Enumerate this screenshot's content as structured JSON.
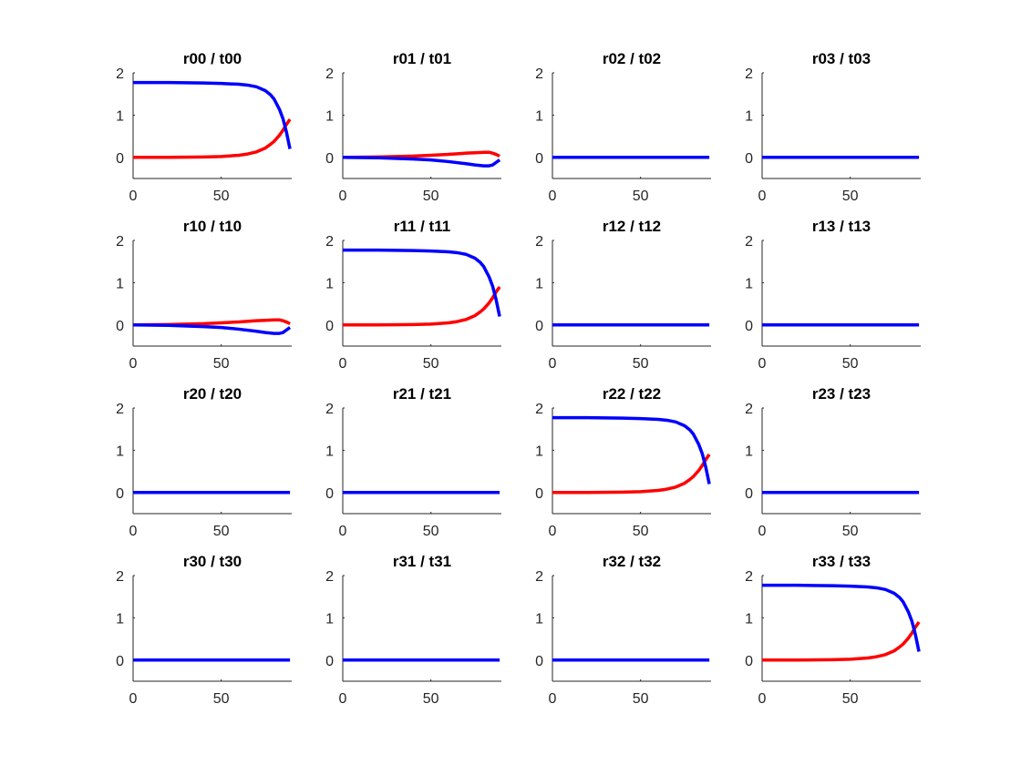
{
  "colors": {
    "red_series": "#ff0000",
    "blue_series": "#0000ff",
    "axis": "#262626"
  },
  "chart_data": [
    {
      "type": "line",
      "title": "r00 / t00",
      "xlim": [
        0,
        90
      ],
      "ylim": [
        -0.5,
        2
      ],
      "xticks": [
        "0",
        "50"
      ],
      "yticks": [
        "0",
        "1",
        "2"
      ],
      "series": [
        {
          "color": "red",
          "x": [
            0,
            20,
            40,
            50,
            60,
            65,
            70,
            75,
            78,
            80,
            83,
            85,
            87,
            89
          ],
          "values": [
            0,
            0.0,
            0.01,
            0.02,
            0.05,
            0.08,
            0.13,
            0.22,
            0.31,
            0.38,
            0.52,
            0.64,
            0.78,
            0.9
          ]
        },
        {
          "color": "blue",
          "x": [
            0,
            20,
            40,
            50,
            60,
            65,
            70,
            75,
            78,
            80,
            83,
            85,
            87,
            89
          ],
          "values": [
            1.77,
            1.77,
            1.76,
            1.75,
            1.73,
            1.71,
            1.67,
            1.58,
            1.48,
            1.38,
            1.14,
            0.92,
            0.6,
            0.2
          ]
        }
      ]
    },
    {
      "type": "line",
      "title": "r01 / t01",
      "xlim": [
        0,
        90
      ],
      "ylim": [
        -0.5,
        2
      ],
      "xticks": [
        "0",
        "50"
      ],
      "yticks": [
        "0",
        "1",
        "2"
      ],
      "series": [
        {
          "color": "red",
          "x": [
            0,
            20,
            40,
            50,
            60,
            70,
            75,
            80,
            83,
            85,
            87,
            89
          ],
          "values": [
            0,
            0.01,
            0.03,
            0.05,
            0.07,
            0.1,
            0.11,
            0.12,
            0.12,
            0.1,
            0.07,
            0.03
          ]
        },
        {
          "color": "blue",
          "x": [
            0,
            20,
            40,
            50,
            60,
            70,
            75,
            80,
            83,
            85,
            87,
            89
          ],
          "values": [
            0,
            -0.01,
            -0.04,
            -0.06,
            -0.1,
            -0.15,
            -0.18,
            -0.2,
            -0.2,
            -0.18,
            -0.12,
            -0.06
          ]
        }
      ]
    },
    {
      "type": "line",
      "title": "r02 / t02",
      "xlim": [
        0,
        90
      ],
      "ylim": [
        -0.5,
        2
      ],
      "xticks": [
        "0",
        "50"
      ],
      "yticks": [
        "0",
        "1",
        "2"
      ],
      "series": [
        {
          "color": "red",
          "x": [
            0,
            89
          ],
          "values": [
            0,
            0
          ]
        },
        {
          "color": "blue",
          "x": [
            0,
            89
          ],
          "values": [
            0,
            0
          ]
        }
      ]
    },
    {
      "type": "line",
      "title": "r03 / t03",
      "xlim": [
        0,
        90
      ],
      "ylim": [
        -0.5,
        2
      ],
      "xticks": [
        "0",
        "50"
      ],
      "yticks": [
        "0",
        "1",
        "2"
      ],
      "series": [
        {
          "color": "red",
          "x": [
            0,
            89
          ],
          "values": [
            0,
            0
          ]
        },
        {
          "color": "blue",
          "x": [
            0,
            89
          ],
          "values": [
            0,
            0
          ]
        }
      ]
    },
    {
      "type": "line",
      "title": "r10 / t10",
      "xlim": [
        0,
        90
      ],
      "ylim": [
        -0.5,
        2
      ],
      "xticks": [
        "0",
        "50"
      ],
      "yticks": [
        "0",
        "1",
        "2"
      ],
      "series": [
        {
          "color": "red",
          "x": [
            0,
            20,
            40,
            50,
            60,
            70,
            75,
            80,
            83,
            85,
            87,
            89
          ],
          "values": [
            0,
            0.01,
            0.03,
            0.05,
            0.07,
            0.1,
            0.11,
            0.12,
            0.12,
            0.1,
            0.07,
            0.03
          ]
        },
        {
          "color": "blue",
          "x": [
            0,
            20,
            40,
            50,
            60,
            70,
            75,
            80,
            83,
            85,
            87,
            89
          ],
          "values": [
            0,
            -0.01,
            -0.04,
            -0.06,
            -0.1,
            -0.15,
            -0.18,
            -0.2,
            -0.2,
            -0.18,
            -0.12,
            -0.06
          ]
        }
      ]
    },
    {
      "type": "line",
      "title": "r11 / t11",
      "xlim": [
        0,
        90
      ],
      "ylim": [
        -0.5,
        2
      ],
      "xticks": [
        "0",
        "50"
      ],
      "yticks": [
        "0",
        "1",
        "2"
      ],
      "series": [
        {
          "color": "red",
          "x": [
            0,
            20,
            40,
            50,
            60,
            65,
            70,
            75,
            78,
            80,
            83,
            85,
            87,
            89
          ],
          "values": [
            0,
            0.0,
            0.01,
            0.02,
            0.05,
            0.08,
            0.13,
            0.22,
            0.31,
            0.38,
            0.52,
            0.64,
            0.78,
            0.9
          ]
        },
        {
          "color": "blue",
          "x": [
            0,
            20,
            40,
            50,
            60,
            65,
            70,
            75,
            78,
            80,
            83,
            85,
            87,
            89
          ],
          "values": [
            1.77,
            1.77,
            1.76,
            1.75,
            1.73,
            1.71,
            1.67,
            1.58,
            1.48,
            1.38,
            1.14,
            0.92,
            0.6,
            0.2
          ]
        }
      ]
    },
    {
      "type": "line",
      "title": "r12 / t12",
      "xlim": [
        0,
        90
      ],
      "ylim": [
        -0.5,
        2
      ],
      "xticks": [
        "0",
        "50"
      ],
      "yticks": [
        "0",
        "1",
        "2"
      ],
      "series": [
        {
          "color": "red",
          "x": [
            0,
            89
          ],
          "values": [
            0,
            0
          ]
        },
        {
          "color": "blue",
          "x": [
            0,
            89
          ],
          "values": [
            0,
            0
          ]
        }
      ]
    },
    {
      "type": "line",
      "title": "r13 / t13",
      "xlim": [
        0,
        90
      ],
      "ylim": [
        -0.5,
        2
      ],
      "xticks": [
        "0",
        "50"
      ],
      "yticks": [
        "0",
        "1",
        "2"
      ],
      "series": [
        {
          "color": "red",
          "x": [
            0,
            89
          ],
          "values": [
            0,
            0
          ]
        },
        {
          "color": "blue",
          "x": [
            0,
            89
          ],
          "values": [
            0,
            0
          ]
        }
      ]
    },
    {
      "type": "line",
      "title": "r20 / t20",
      "xlim": [
        0,
        90
      ],
      "ylim": [
        -0.5,
        2
      ],
      "xticks": [
        "0",
        "50"
      ],
      "yticks": [
        "0",
        "1",
        "2"
      ],
      "series": [
        {
          "color": "red",
          "x": [
            0,
            89
          ],
          "values": [
            0,
            0
          ]
        },
        {
          "color": "blue",
          "x": [
            0,
            89
          ],
          "values": [
            0,
            0
          ]
        }
      ]
    },
    {
      "type": "line",
      "title": "r21 / t21",
      "xlim": [
        0,
        90
      ],
      "ylim": [
        -0.5,
        2
      ],
      "xticks": [
        "0",
        "50"
      ],
      "yticks": [
        "0",
        "1",
        "2"
      ],
      "series": [
        {
          "color": "red",
          "x": [
            0,
            89
          ],
          "values": [
            0,
            0
          ]
        },
        {
          "color": "blue",
          "x": [
            0,
            89
          ],
          "values": [
            0,
            0
          ]
        }
      ]
    },
    {
      "type": "line",
      "title": "r22 / t22",
      "xlim": [
        0,
        90
      ],
      "ylim": [
        -0.5,
        2
      ],
      "xticks": [
        "0",
        "50"
      ],
      "yticks": [
        "0",
        "1",
        "2"
      ],
      "series": [
        {
          "color": "red",
          "x": [
            0,
            20,
            40,
            50,
            60,
            65,
            70,
            75,
            78,
            80,
            83,
            85,
            87,
            89
          ],
          "values": [
            0,
            0.0,
            0.01,
            0.02,
            0.05,
            0.08,
            0.13,
            0.22,
            0.31,
            0.38,
            0.52,
            0.64,
            0.78,
            0.9
          ]
        },
        {
          "color": "blue",
          "x": [
            0,
            20,
            40,
            50,
            60,
            65,
            70,
            75,
            78,
            80,
            83,
            85,
            87,
            89
          ],
          "values": [
            1.77,
            1.77,
            1.76,
            1.75,
            1.73,
            1.71,
            1.67,
            1.58,
            1.48,
            1.38,
            1.14,
            0.92,
            0.6,
            0.2
          ]
        }
      ]
    },
    {
      "type": "line",
      "title": "r23 / t23",
      "xlim": [
        0,
        90
      ],
      "ylim": [
        -0.5,
        2
      ],
      "xticks": [
        "0",
        "50"
      ],
      "yticks": [
        "0",
        "1",
        "2"
      ],
      "series": [
        {
          "color": "red",
          "x": [
            0,
            89
          ],
          "values": [
            0,
            0
          ]
        },
        {
          "color": "blue",
          "x": [
            0,
            89
          ],
          "values": [
            0,
            0
          ]
        }
      ]
    },
    {
      "type": "line",
      "title": "r30 / t30",
      "xlim": [
        0,
        90
      ],
      "ylim": [
        -0.5,
        2
      ],
      "xticks": [
        "0",
        "50"
      ],
      "yticks": [
        "0",
        "1",
        "2"
      ],
      "series": [
        {
          "color": "red",
          "x": [
            0,
            89
          ],
          "values": [
            0,
            0
          ]
        },
        {
          "color": "blue",
          "x": [
            0,
            89
          ],
          "values": [
            0,
            0
          ]
        }
      ]
    },
    {
      "type": "line",
      "title": "r31 / t31",
      "xlim": [
        0,
        90
      ],
      "ylim": [
        -0.5,
        2
      ],
      "xticks": [
        "0",
        "50"
      ],
      "yticks": [
        "0",
        "1",
        "2"
      ],
      "series": [
        {
          "color": "red",
          "x": [
            0,
            89
          ],
          "values": [
            0,
            0
          ]
        },
        {
          "color": "blue",
          "x": [
            0,
            89
          ],
          "values": [
            0,
            0
          ]
        }
      ]
    },
    {
      "type": "line",
      "title": "r32 / t32",
      "xlim": [
        0,
        90
      ],
      "ylim": [
        -0.5,
        2
      ],
      "xticks": [
        "0",
        "50"
      ],
      "yticks": [
        "0",
        "1",
        "2"
      ],
      "series": [
        {
          "color": "red",
          "x": [
            0,
            89
          ],
          "values": [
            0,
            0
          ]
        },
        {
          "color": "blue",
          "x": [
            0,
            89
          ],
          "values": [
            0,
            0
          ]
        }
      ]
    },
    {
      "type": "line",
      "title": "r33 / t33",
      "xlim": [
        0,
        90
      ],
      "ylim": [
        -0.5,
        2
      ],
      "xticks": [
        "0",
        "50"
      ],
      "yticks": [
        "0",
        "1",
        "2"
      ],
      "series": [
        {
          "color": "red",
          "x": [
            0,
            20,
            40,
            50,
            60,
            65,
            70,
            75,
            78,
            80,
            83,
            85,
            87,
            89
          ],
          "values": [
            0,
            0.0,
            0.01,
            0.02,
            0.05,
            0.08,
            0.13,
            0.22,
            0.31,
            0.38,
            0.52,
            0.64,
            0.78,
            0.9
          ]
        },
        {
          "color": "blue",
          "x": [
            0,
            20,
            40,
            50,
            60,
            65,
            70,
            75,
            78,
            80,
            83,
            85,
            87,
            89
          ],
          "values": [
            1.77,
            1.77,
            1.76,
            1.75,
            1.73,
            1.71,
            1.67,
            1.58,
            1.48,
            1.38,
            1.14,
            0.92,
            0.6,
            0.2
          ]
        }
      ]
    }
  ]
}
